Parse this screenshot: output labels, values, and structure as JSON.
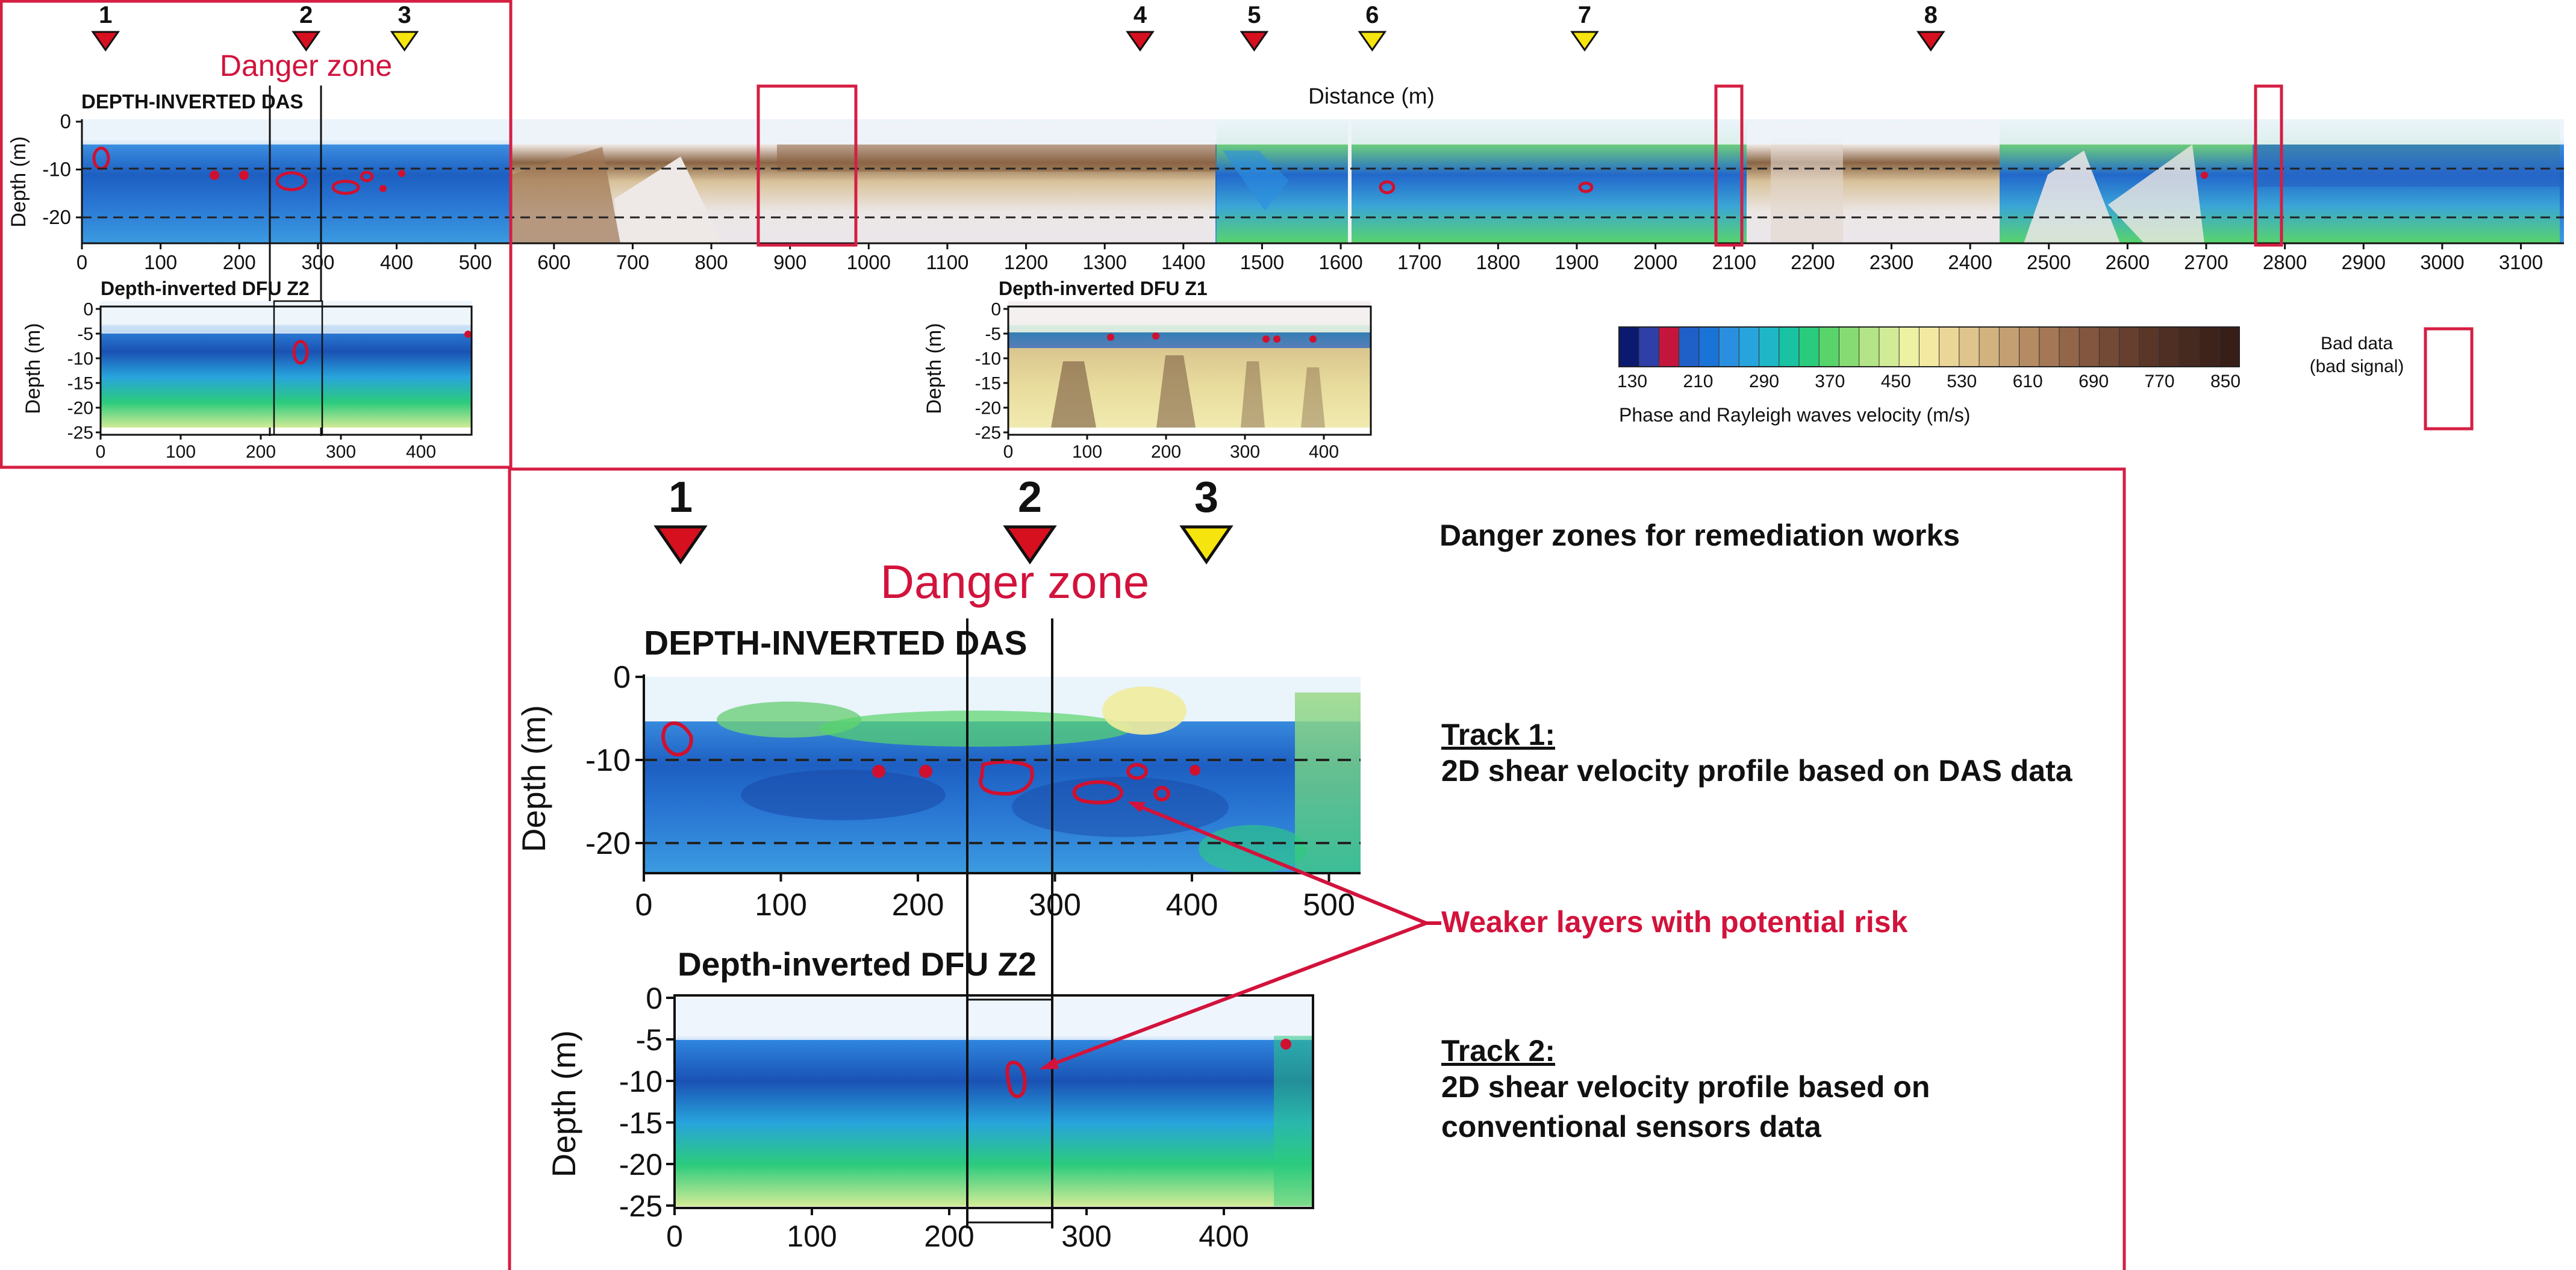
{
  "overview": {
    "markers": [
      {
        "label": "1",
        "dist": 30,
        "color": "red"
      },
      {
        "label": "2",
        "dist": 285,
        "color": "red"
      },
      {
        "label": "3",
        "dist": 410,
        "color": "yellow"
      },
      {
        "label": "4",
        "dist": 1345,
        "color": "red"
      },
      {
        "label": "5",
        "dist": 1490,
        "color": "red"
      },
      {
        "label": "6",
        "dist": 1640,
        "color": "yellow"
      },
      {
        "label": "7",
        "dist": 1910,
        "color": "yellow"
      },
      {
        "label": "8",
        "dist": 2350,
        "color": "red"
      }
    ],
    "danger_zone_label": "Danger zone",
    "distance_label": "Distance (m)",
    "das_title": "DEPTH-INVERTED DAS",
    "depth_label": "Depth (m)",
    "x_ticks": [
      "0",
      "100",
      "200",
      "300",
      "400",
      "500",
      "600",
      "700",
      "800",
      "900",
      "1000",
      "1100",
      "1200",
      "1300",
      "1400",
      "1500",
      "1600",
      "1700",
      "1800",
      "1900",
      "2000",
      "2100",
      "2200",
      "2300",
      "2400",
      "2500",
      "2600",
      "2700",
      "2800",
      "2900",
      "3000",
      "3100"
    ],
    "y_ticks": [
      "0",
      "-10",
      "-20"
    ],
    "dfu_z2_title": "Depth-inverted DFU Z2",
    "dfu_z1_title": "Depth-inverted DFU Z1",
    "dfu_y_ticks": [
      "0",
      "-5",
      "-10",
      "-15",
      "-20",
      "-25"
    ],
    "dfu_x_ticks": [
      "0",
      "100",
      "200",
      "300",
      "400"
    ],
    "bad_data_label_1": "Bad data",
    "bad_data_label_2": "(bad signal)"
  },
  "colorbar": {
    "tick_labels": [
      "130",
      "210",
      "290",
      "370",
      "450",
      "530",
      "610",
      "690",
      "770",
      "850"
    ],
    "title": "Phase and Rayleigh waves velocity (m/s)",
    "colors": [
      "#0b1a6e",
      "#2f3fa8",
      "#c4163d",
      "#1f5fc8",
      "#1a73d6",
      "#2b8fe0",
      "#28a4dc",
      "#1fb7c8",
      "#19c2a2",
      "#2bcb7d",
      "#58d46b",
      "#86dc72",
      "#b3e487",
      "#d2eb96",
      "#ecf1a3",
      "#f3e9a0",
      "#ead797",
      "#dfc58c",
      "#d2b27f",
      "#c49f72",
      "#b48b63",
      "#a47856",
      "#93664a",
      "#82563f",
      "#734a36",
      "#663f2e",
      "#5a3628",
      "#4f2e23",
      "#46291f",
      "#3e231b",
      "#371f18"
    ]
  },
  "zoom": {
    "markers": [
      {
        "label": "1",
        "color": "red"
      },
      {
        "label": "2",
        "color": "red"
      },
      {
        "label": "3",
        "color": "yellow"
      }
    ],
    "danger_zone_label": "Danger zone",
    "das_title": "DEPTH-INVERTED DAS",
    "dfu_title": "Depth-inverted DFU Z2",
    "depth_label": "Depth (m)",
    "das_x_ticks": [
      "0",
      "100",
      "200",
      "300",
      "400",
      "500"
    ],
    "das_y_ticks": [
      "0",
      "-10",
      "-20"
    ],
    "dfu_x_ticks": [
      "0",
      "100",
      "200",
      "300",
      "400"
    ],
    "dfu_y_ticks": [
      "0",
      "-5",
      "-10",
      "-15",
      "-20",
      "-25"
    ]
  },
  "annotations": {
    "heading": "Danger zones for remediation works",
    "track1_title": "Track 1:",
    "track1_desc": "2D shear velocity profile based on DAS data",
    "weaker_layers": "Weaker layers with potential risk",
    "track2_title": "Track 2:",
    "track2_desc_1": "2D shear velocity profile based on",
    "track2_desc_2": "conventional sensors data"
  }
}
